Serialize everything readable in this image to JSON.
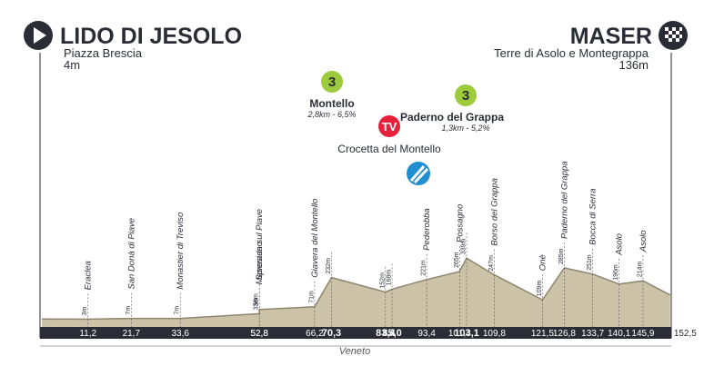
{
  "start": {
    "name": "LIDO DI JESOLO",
    "place": "Piazza Brescia",
    "altitude": {
      "value": 4,
      "label": "4m"
    },
    "km": 0
  },
  "finish": {
    "name": "MASER",
    "place": "Terre di Asolo e Montegrappa",
    "altitude": {
      "value": 136,
      "label": "136m"
    },
    "km": {
      "value": 152.5,
      "label": "152,5"
    }
  },
  "climbs": [
    {
      "category": "3",
      "name": "Montello",
      "details": "2,8km - 6,5%"
    },
    {
      "category": "3",
      "name": "Paderno del Grappa",
      "details": "1,3km - 5,2%"
    }
  ],
  "tv": {
    "label": "TV",
    "name": "Crocetta del Montello"
  },
  "region": "Veneto",
  "waypoints": [
    {
      "name": "Eraclea",
      "altitude": {
        "value": 3,
        "label": "3m"
      },
      "km": {
        "value": 11.2,
        "label": "11,2"
      }
    },
    {
      "name": "San Donà di Piave",
      "altitude": {
        "value": 7,
        "label": "7m"
      },
      "km": {
        "value": 21.7,
        "label": "21,7"
      }
    },
    {
      "name": "Monastier di Treviso",
      "altitude": {
        "value": 7,
        "label": "7m"
      },
      "km": {
        "value": 33.6,
        "label": "33,6"
      }
    },
    {
      "name": "Maserada sul Piave",
      "altitude": {
        "value": 33,
        "label": "33m"
      },
      "km": {
        "value": 52.8,
        "label": "52,8"
      }
    },
    {
      "name": "Spresiano",
      "altitude": {
        "value": 56,
        "label": "56m"
      },
      "km": {
        "value": 52.8,
        "label": "52,8"
      }
    },
    {
      "name": "Giavera del Montello",
      "altitude": {
        "value": 71,
        "label": "71m"
      },
      "km": {
        "value": 66.2,
        "label": "66,2"
      }
    },
    {
      "altitude": {
        "value": 232,
        "label": "232m"
      },
      "km": {
        "value": 70.3,
        "label": "70,3"
      },
      "bold": true
    },
    {
      "altitude": {
        "value": 152,
        "label": "152m"
      },
      "km": {
        "value": 83.4,
        "label": "83,4"
      },
      "bold": true
    },
    {
      "altitude": {
        "value": 168,
        "label": "168m"
      },
      "km": {
        "value": 85,
        "label": "85,0"
      },
      "bold": true
    },
    {
      "name": "Pederobba",
      "altitude": {
        "value": 221,
        "label": "221m"
      },
      "km": {
        "value": 93.4,
        "label": "93,4"
      }
    },
    {
      "name": "Possagno",
      "altitude": {
        "value": 265,
        "label": "265m"
      },
      "km": {
        "value": 101.4,
        "label": "101,4"
      }
    },
    {
      "altitude": {
        "value": 339,
        "label": "339m"
      },
      "km": {
        "value": 103.1,
        "label": "103,1"
      },
      "bold": true
    },
    {
      "name": "Borso del Grappa",
      "altitude": {
        "value": 247,
        "label": "247m"
      },
      "km": {
        "value": 109.8,
        "label": "109,8"
      }
    },
    {
      "name": "Onè",
      "altitude": {
        "value": 109,
        "label": "109m"
      },
      "km": {
        "value": 121.5,
        "label": "121,5"
      }
    },
    {
      "name": "Paderno del Grappa",
      "altitude": {
        "value": 285,
        "label": "285m"
      },
      "km": {
        "value": 126.8,
        "label": "126,8"
      }
    },
    {
      "name": "Bocca di Serra",
      "altitude": {
        "value": 251,
        "label": "251m"
      },
      "km": {
        "value": 133.7,
        "label": "133,7"
      }
    },
    {
      "name": "Asolo",
      "altitude": {
        "value": 196,
        "label": "196m"
      },
      "km": {
        "value": 140.1,
        "label": "140,1"
      }
    },
    {
      "name": "Asolo",
      "altitude": {
        "value": 214,
        "label": "214m"
      },
      "km": {
        "value": 145.9,
        "label": "145,9"
      }
    }
  ]
}
